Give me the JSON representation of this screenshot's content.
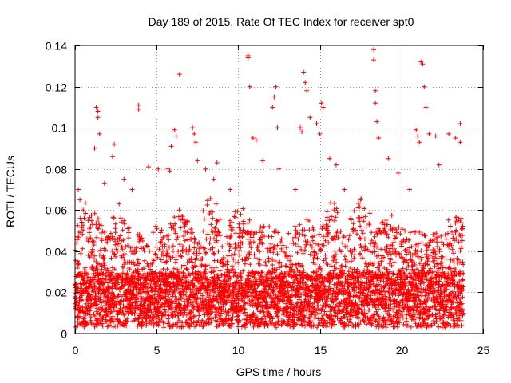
{
  "chart_data": {
    "type": "scatter",
    "title": "Day 189 of 2015, Rate Of TEC Index for receiver spt0",
    "xlabel": "GPS time / hours",
    "ylabel": "ROTI / TECUs",
    "xlim": [
      0,
      25
    ],
    "ylim": [
      0,
      0.14
    ],
    "xticks": [
      0,
      5,
      10,
      15,
      20,
      25
    ],
    "xtick_labels": [
      "0",
      "5",
      "10",
      "15",
      "20",
      "25"
    ],
    "yticks": [
      0,
      0.02,
      0.04,
      0.06,
      0.08,
      0.1,
      0.12,
      0.14
    ],
    "ytick_labels": [
      "0",
      "0.02",
      "0.04",
      "0.06",
      "0.08",
      "0.1",
      "0.12",
      "0.14"
    ],
    "grid": true,
    "marker": "plus",
    "color": "#ff0000",
    "data_range_hours": [
      0,
      23.8
    ],
    "series": [
      {
        "name": "ROTI",
        "points": [
          [
            0.2,
            0.07
          ],
          [
            0.3,
            0.065
          ],
          [
            0.5,
            0.06
          ],
          [
            0.8,
            0.055
          ],
          [
            1.2,
            0.09
          ],
          [
            1.3,
            0.11
          ],
          [
            1.4,
            0.108
          ],
          [
            1.4,
            0.105
          ],
          [
            1.5,
            0.097
          ],
          [
            1.8,
            0.073
          ],
          [
            2.3,
            0.086
          ],
          [
            2.4,
            0.092
          ],
          [
            2.7,
            0.063
          ],
          [
            3.0,
            0.075
          ],
          [
            3.5,
            0.07
          ],
          [
            3.9,
            0.111
          ],
          [
            3.9,
            0.109
          ],
          [
            4.5,
            0.081
          ],
          [
            5.1,
            0.08
          ],
          [
            5.7,
            0.08
          ],
          [
            5.8,
            0.079
          ],
          [
            5.9,
            0.091
          ],
          [
            6.1,
            0.099
          ],
          [
            6.2,
            0.096
          ],
          [
            6.4,
            0.126
          ],
          [
            7.2,
            0.1
          ],
          [
            7.3,
            0.097
          ],
          [
            7.4,
            0.093
          ],
          [
            7.5,
            0.084
          ],
          [
            8.0,
            0.08
          ],
          [
            8.5,
            0.075
          ],
          [
            8.7,
            0.083
          ],
          [
            9.5,
            0.07
          ],
          [
            10.6,
            0.135
          ],
          [
            10.6,
            0.134
          ],
          [
            10.7,
            0.12
          ],
          [
            10.9,
            0.095
          ],
          [
            11.1,
            0.094
          ],
          [
            11.5,
            0.084
          ],
          [
            12.1,
            0.11
          ],
          [
            12.2,
            0.115
          ],
          [
            12.3,
            0.12
          ],
          [
            12.4,
            0.1
          ],
          [
            12.5,
            0.08
          ],
          [
            13.5,
            0.07
          ],
          [
            13.8,
            0.1
          ],
          [
            13.9,
            0.098
          ],
          [
            14.0,
            0.127
          ],
          [
            14.1,
            0.122
          ],
          [
            14.2,
            0.118
          ],
          [
            14.4,
            0.105
          ],
          [
            14.8,
            0.102
          ],
          [
            15.0,
            0.097
          ],
          [
            15.1,
            0.112
          ],
          [
            15.2,
            0.11
          ],
          [
            15.6,
            0.085
          ],
          [
            16.0,
            0.082
          ],
          [
            16.5,
            0.07
          ],
          [
            17.5,
            0.065
          ],
          [
            18.3,
            0.138
          ],
          [
            18.3,
            0.133
          ],
          [
            18.4,
            0.118
          ],
          [
            18.4,
            0.112
          ],
          [
            18.5,
            0.103
          ],
          [
            18.6,
            0.095
          ],
          [
            19.2,
            0.085
          ],
          [
            19.8,
            0.078
          ],
          [
            20.5,
            0.07
          ],
          [
            20.9,
            0.099
          ],
          [
            21.0,
            0.096
          ],
          [
            21.1,
            0.093
          ],
          [
            21.2,
            0.132
          ],
          [
            21.3,
            0.131
          ],
          [
            21.4,
            0.12
          ],
          [
            21.5,
            0.11
          ],
          [
            21.7,
            0.097
          ],
          [
            22.1,
            0.096
          ],
          [
            22.3,
            0.082
          ],
          [
            22.9,
            0.097
          ],
          [
            23.3,
            0.095
          ],
          [
            23.6,
            0.102
          ],
          [
            23.6,
            0.093
          ]
        ],
        "background_band": {
          "description": "dense scatter",
          "base_range": [
            0.003,
            0.03
          ],
          "typical_max": 0.065,
          "interval_hours": 0.02
        }
      }
    ]
  }
}
